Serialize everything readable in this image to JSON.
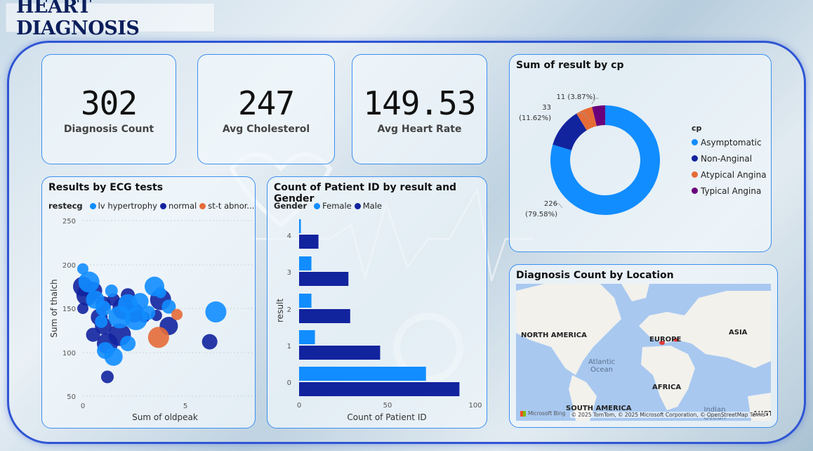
{
  "header": {
    "title": "HEART DIAGNOSIS"
  },
  "kpis": [
    {
      "value": "302",
      "label": "Diagnosis Count"
    },
    {
      "value": "247",
      "label": "Avg Cholesterol"
    },
    {
      "value": "149.53",
      "label": "Avg Heart Rate"
    }
  ],
  "ecg_chart": {
    "title": "Results by ECG tests",
    "legend_title": "restecg",
    "legend": [
      {
        "name": "lv hypertrophy",
        "color": "#118DFF"
      },
      {
        "name": "normal",
        "color": "#12239E"
      },
      {
        "name": "st-t abnor...",
        "color": "#E66C37"
      }
    ],
    "y_ticks": [
      "250",
      "200",
      "150",
      "100",
      "50"
    ],
    "x_ticks": [
      "0",
      "5"
    ],
    "xlabel": "Sum of oldpeak",
    "ylabel": "Sum of thalch"
  },
  "gender_chart": {
    "title": "Count of Patient ID by result and Gender",
    "legend_title": "Gender",
    "legend": [
      {
        "name": "Female",
        "color": "#118DFF"
      },
      {
        "name": "Male",
        "color": "#12239E"
      }
    ],
    "y_ticks": [
      "4",
      "3",
      "2",
      "1",
      "0"
    ],
    "x_ticks": [
      "0",
      "50",
      "100"
    ],
    "xlabel": "Count of Patient ID",
    "ylabel": "result"
  },
  "cp_chart": {
    "title": "Sum of result by cp",
    "legend_title": "cp",
    "legend": [
      {
        "name": "Asymptomatic",
        "color": "#118DFF"
      },
      {
        "name": "Non-Anginal",
        "color": "#12239E"
      },
      {
        "name": "Atypical Angina",
        "color": "#E66C37"
      },
      {
        "name": "Typical Angina",
        "color": "#6B007B"
      }
    ],
    "labels": {
      "asym_value": "226",
      "asym_pct": "(79.58%)",
      "non_value": "33",
      "non_pct": "(11.62%)",
      "typical": "11 (3.87%)"
    }
  },
  "map": {
    "title": "Diagnosis Count by Location",
    "labels": {
      "north_america": "NORTH AMERICA",
      "europe": "EUROPE",
      "asia": "ASIA",
      "africa": "AFRICA",
      "south_america": "SOUTH AMERICA",
      "austr": "AUSTI",
      "atlantic": "Atlantic",
      "ocean": "Ocean",
      "indian": "Indian",
      "indian_ocean": "Ocean"
    },
    "bing": "Microsoft Bing",
    "attribution": "© 2025 TomTom, © 2025 Microsoft Corporation, © OpenStreetMap  Terms"
  },
  "chart_data": [
    {
      "type": "scatter",
      "title": "Results by ECG tests",
      "xlabel": "Sum of oldpeak",
      "ylabel": "Sum of thalch",
      "xlim": [
        0,
        7
      ],
      "ylim": [
        50,
        250
      ],
      "series": [
        {
          "name": "normal",
          "color": "#12239E",
          "points": [
            [
              0,
              150
            ],
            [
              0.2,
              165
            ],
            [
              0.5,
              170
            ],
            [
              1,
              155
            ],
            [
              1.5,
              160
            ],
            [
              2,
              150
            ],
            [
              2.5,
              145
            ],
            [
              1,
              130
            ],
            [
              0.5,
              120
            ],
            [
              3,
              140
            ],
            [
              1.2,
              110
            ],
            [
              4.2,
              130
            ],
            [
              6.2,
              112
            ],
            [
              1.2,
              72
            ],
            [
              1.8,
              120
            ],
            [
              0,
              175
            ],
            [
              0.8,
              140
            ],
            [
              2.2,
              165
            ],
            [
              3.6,
              142
            ],
            [
              3.8,
              160
            ]
          ]
        },
        {
          "name": "lv hypertrophy",
          "color": "#118DFF",
          "points": [
            [
              0,
              195
            ],
            [
              0.3,
              180
            ],
            [
              0.6,
              160
            ],
            [
              1,
              150
            ],
            [
              1.4,
              170
            ],
            [
              1.8,
              140
            ],
            [
              2.2,
              155
            ],
            [
              2.8,
              158
            ],
            [
              3.2,
              145
            ],
            [
              3.8,
              168
            ],
            [
              6.5,
              146
            ],
            [
              1.5,
              95
            ],
            [
              2.2,
              110
            ],
            [
              0.9,
              135
            ],
            [
              2.6,
              138
            ],
            [
              3.5,
              175
            ],
            [
              1.1,
              102
            ],
            [
              4.2,
              152
            ]
          ]
        },
        {
          "name": "st-t abnor...",
          "color": "#E66C37",
          "points": [
            [
              4.6,
              143
            ],
            [
              3.7,
              117
            ]
          ]
        }
      ]
    },
    {
      "type": "bar",
      "title": "Count of Patient ID by result and Gender",
      "orientation": "horizontal",
      "xlabel": "Count of Patient ID",
      "ylabel": "result",
      "categories": [
        "4",
        "3",
        "2",
        "1",
        "0"
      ],
      "xlim": [
        0,
        100
      ],
      "series": [
        {
          "name": "Female",
          "values": [
            1,
            7,
            7,
            9,
            72
          ]
        },
        {
          "name": "Male",
          "values": [
            11,
            28,
            29,
            46,
            91
          ]
        }
      ]
    },
    {
      "type": "pie",
      "title": "Sum of result by cp",
      "categories": [
        "Asymptomatic",
        "Non-Anginal",
        "Atypical Angina",
        "Typical Angina"
      ],
      "values": [
        226,
        33,
        14,
        11
      ],
      "percentages": [
        79.58,
        11.62,
        4.93,
        3.87
      ]
    }
  ]
}
